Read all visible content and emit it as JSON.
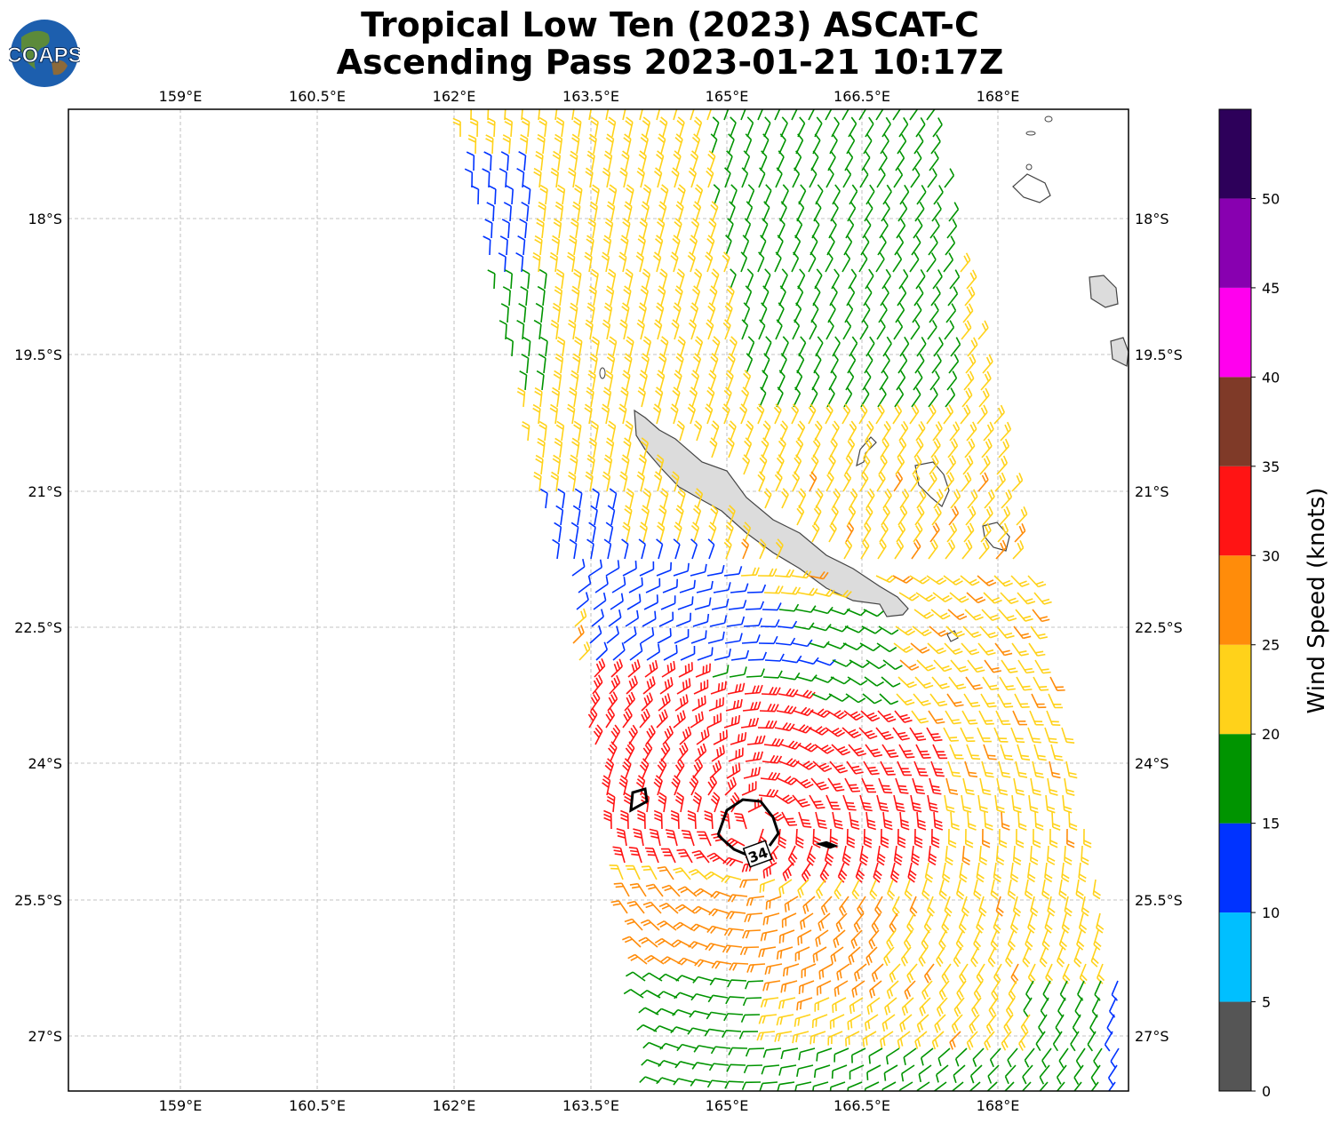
{
  "header": {
    "title_line1": "Tropical Low Ten (2023) ASCAT-C",
    "title_line2": "Ascending Pass 2023-01-21 10:17Z",
    "logo_text": "COAPS"
  },
  "map": {
    "lon_ticks": [
      "159°E",
      "160.5°E",
      "162°E",
      "163.5°E",
      "165°E",
      "166.5°E",
      "168°E"
    ],
    "lat_ticks": [
      "18°S",
      "19.5°S",
      "21°S",
      "22.5°S",
      "24°S",
      "25.5°S",
      "27°S"
    ],
    "lon_range": [
      157.75,
      169.4
    ],
    "lat_range": [
      -17.6,
      -28.4
    ],
    "contour_label": "34",
    "land_color": "#d9d9d9",
    "barb_colors": {
      "0-5": "#555555",
      "5-10": "#00bfff",
      "10-15": "#0033ff",
      "15-20": "#009400",
      "20-25": "#ffd21a",
      "25-30": "#ff8c0a",
      "30-35": "#ff1414"
    }
  },
  "colorbar": {
    "label": "Wind Speed (knots)",
    "ticks": [
      "0",
      "5",
      "10",
      "15",
      "20",
      "25",
      "30",
      "35",
      "40",
      "45",
      "50"
    ],
    "colors": [
      "#555555",
      "#00bfff",
      "#0033ff",
      "#009400",
      "#ffd21a",
      "#ff8c0a",
      "#ff1414",
      "#7f3a28",
      "#ff00ee",
      "#8800b0",
      "#2d005a"
    ]
  }
}
